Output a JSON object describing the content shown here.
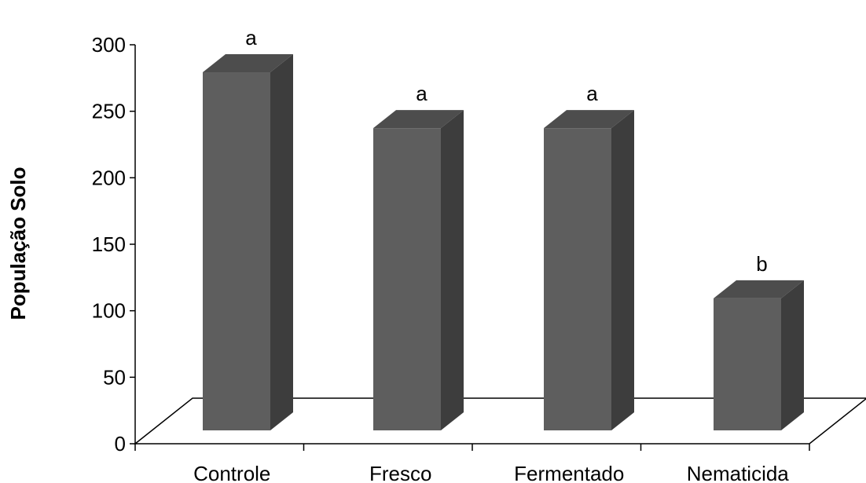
{
  "chart_data": {
    "type": "bar",
    "title": "",
    "xlabel": "",
    "ylabel": "População Solo",
    "categories": [
      "Controle",
      "Fresco",
      "Fermentado",
      "Nematicida"
    ],
    "values": [
      287,
      245,
      245,
      117
    ],
    "significance_letters": [
      "a",
      "a",
      "a",
      "b"
    ],
    "ylim": [
      0,
      300
    ],
    "yticks": [
      0,
      50,
      100,
      150,
      200,
      250,
      300
    ],
    "three_d": true,
    "grid": false,
    "legend": "none",
    "colors": {
      "bar_front": "#5e5e5e",
      "bar_side": "#3d3d3d",
      "bar_top": "#4d4d4d"
    }
  }
}
